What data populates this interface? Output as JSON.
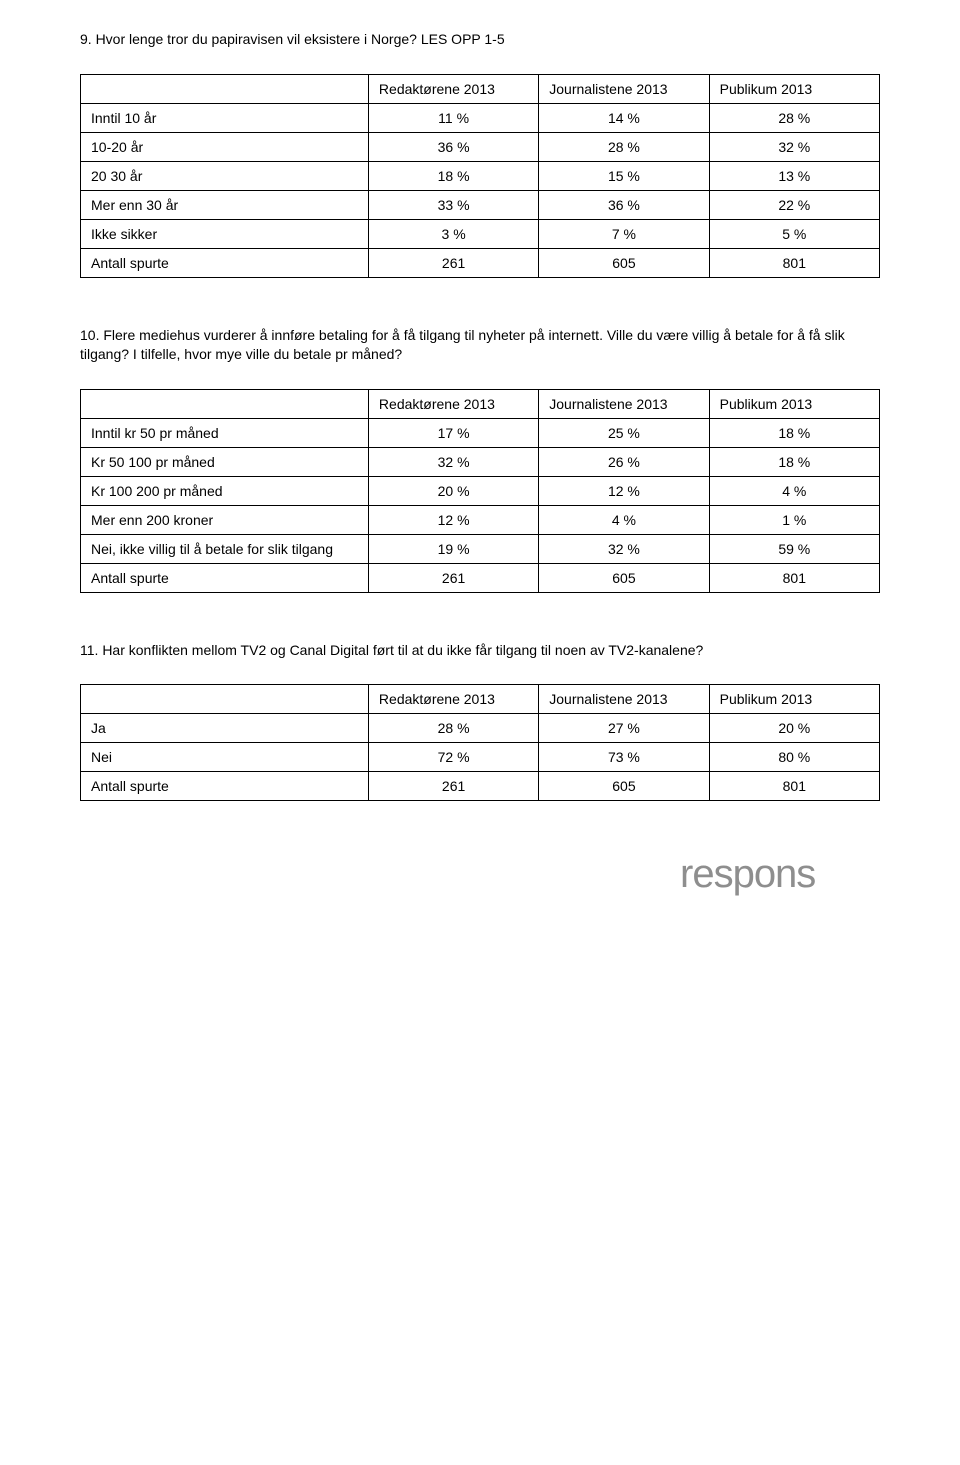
{
  "q9": {
    "text": "9. Hvor lenge tror du papiravisen vil eksistere i Norge? LES OPP 1-5",
    "headers": [
      "",
      "Redaktørene 2013",
      "Journalistene 2013",
      "Publikum 2013"
    ],
    "rows": [
      {
        "label": "Inntil 10 år",
        "vals": [
          "11 %",
          "14 %",
          "28 %"
        ]
      },
      {
        "label": "10-20 år",
        "vals": [
          "36 %",
          "28 %",
          "32 %"
        ]
      },
      {
        "label": "20 30 år",
        "vals": [
          "18 %",
          "15 %",
          "13 %"
        ]
      },
      {
        "label": "Mer enn 30 år",
        "vals": [
          "33 %",
          "36 %",
          "22 %"
        ]
      },
      {
        "label": "Ikke sikker",
        "vals": [
          "3 %",
          "7 %",
          "5 %"
        ]
      },
      {
        "label": "Antall spurte",
        "vals": [
          "261",
          "605",
          "801"
        ]
      }
    ]
  },
  "q10": {
    "text": "10. Flere mediehus vurderer å innføre betaling for å få tilgang til nyheter på internett. Ville du være villig å betale for å få slik tilgang? I tilfelle, hvor mye ville du betale pr måned?",
    "headers": [
      "",
      "Redaktørene 2013",
      "Journalistene 2013",
      "Publikum 2013"
    ],
    "rows": [
      {
        "label": "Inntil kr 50 pr måned",
        "vals": [
          "17 %",
          "25 %",
          "18 %"
        ]
      },
      {
        "label": "Kr 50 100 pr måned",
        "vals": [
          "32 %",
          "26 %",
          "18 %"
        ]
      },
      {
        "label": "Kr 100 200 pr måned",
        "vals": [
          "20 %",
          "12 %",
          "4 %"
        ]
      },
      {
        "label": "Mer enn 200 kroner",
        "vals": [
          "12 %",
          "4 %",
          "1 %"
        ]
      },
      {
        "label": "Nei, ikke villig til å betale for slik tilgang",
        "vals": [
          "19 %",
          "32 %",
          "59 %"
        ]
      },
      {
        "label": "Antall spurte",
        "vals": [
          "261",
          "605",
          "801"
        ]
      }
    ]
  },
  "q11": {
    "text": "11. Har konflikten mellom TV2 og Canal Digital ført til at du ikke får tilgang til noen av TV2-kanalene?",
    "headers": [
      "",
      "Redaktørene 2013",
      "Journalistene 2013",
      "Publikum 2013"
    ],
    "rows": [
      {
        "label": "Ja",
        "vals": [
          "28 %",
          "27 %",
          "20 %"
        ]
      },
      {
        "label": "Nei",
        "vals": [
          "72 %",
          "73 %",
          "80 %"
        ]
      },
      {
        "label": "Antall spurte",
        "vals": [
          "261",
          "605",
          "801"
        ]
      }
    ]
  },
  "logo_text": "respons",
  "colors": {
    "logo_fill": "#8e8e8e",
    "text": "#000000",
    "border": "#000000",
    "bg": "#ffffff"
  }
}
